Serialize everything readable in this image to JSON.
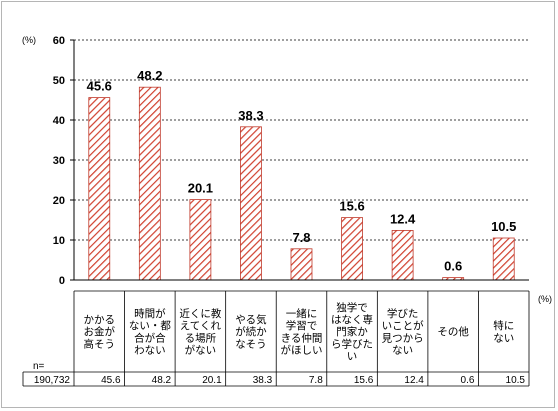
{
  "chart_data": {
    "type": "bar",
    "y_unit": "(%)",
    "table_unit": "(%)",
    "ylim": [
      0,
      60
    ],
    "yticks": [
      0,
      10,
      20,
      30,
      40,
      50,
      60
    ],
    "grid": true,
    "categories": [
      [
        "かかる",
        "お金が",
        "高そう"
      ],
      [
        "時間が",
        "ない・都",
        "合が合",
        "わない"
      ],
      [
        "近くに教",
        "えてくれ",
        "る場所",
        "がない"
      ],
      [
        "やる気",
        "が続か",
        "なそう"
      ],
      [
        "一緒に",
        "学習で",
        "きる仲間",
        "がほしい"
      ],
      [
        "独学で",
        "はなく専",
        "門家か",
        "ら学びた",
        "い"
      ],
      [
        "学びた",
        "いことが",
        "見つから",
        "ない"
      ],
      [
        "その他"
      ],
      [
        "特に",
        "ない"
      ]
    ],
    "values": [
      45.6,
      48.2,
      20.1,
      38.3,
      7.8,
      15.6,
      12.4,
      0.6,
      10.5
    ],
    "data_labels": [
      "45.6",
      "48.2",
      "20.1",
      "38.3",
      "7.8",
      "15.6",
      "12.4",
      "0.6",
      "10.5"
    ],
    "table_values": [
      "45.6",
      "48.2",
      "20.1",
      "38.3",
      "7.8",
      "15.6",
      "12.4",
      "0.6",
      "10.5"
    ],
    "n_label": "n=",
    "n_value": "190,732",
    "bar_fill": "#ffffff",
    "bar_hatch": "#d0402e",
    "bar_stroke": "#c0392b"
  }
}
